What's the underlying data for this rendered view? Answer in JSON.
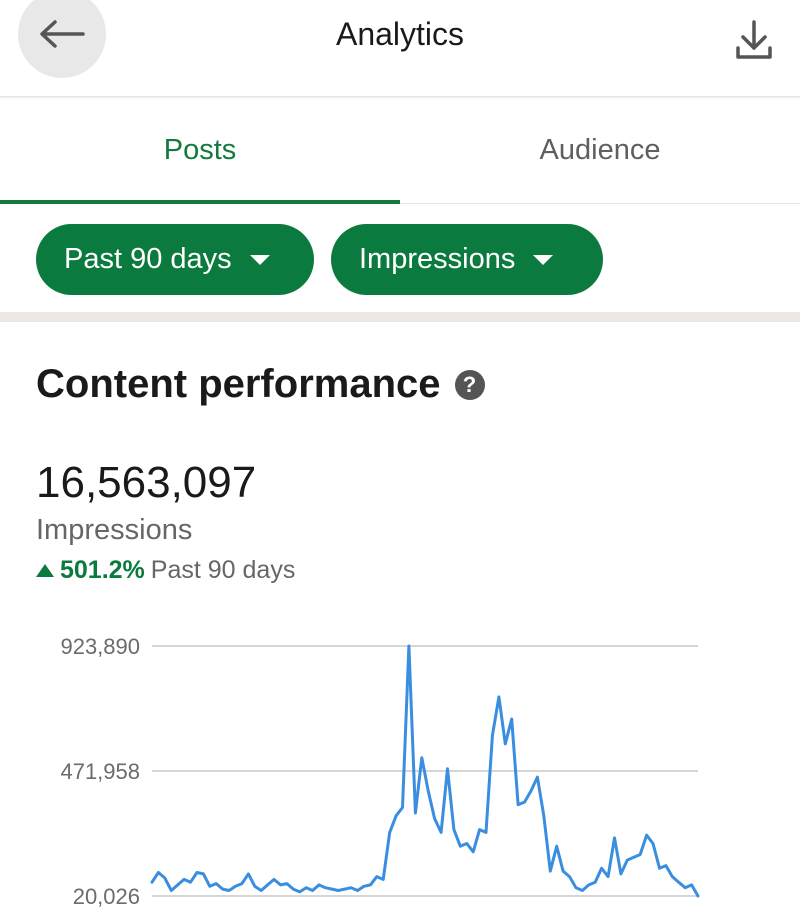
{
  "header": {
    "title": "Analytics",
    "back_icon": "arrow-left-icon",
    "download_icon": "download-icon"
  },
  "tabs": [
    {
      "label": "Posts",
      "active": true
    },
    {
      "label": "Audience",
      "active": false
    }
  ],
  "filters": {
    "date_range": "Past 90 days",
    "metric": "Impressions"
  },
  "section": {
    "title": "Content performance",
    "help_icon": "question-circle-icon",
    "help_glyph": "?"
  },
  "summary": {
    "total": "16,563,097",
    "label": "Impressions",
    "change": "501.2%",
    "change_period": "Past 90 days"
  },
  "colors": {
    "accent": "#0b7a3f",
    "line": "#3a8ee0"
  },
  "chart_data": {
    "type": "line",
    "yticks": [
      "923,890",
      "471,958",
      "20,026"
    ],
    "ylim": [
      20026,
      923890
    ],
    "grid": true,
    "series": [
      {
        "values": [
          70000,
          105000,
          85000,
          40000,
          60000,
          80000,
          70000,
          105000,
          100000,
          55000,
          65000,
          45000,
          40000,
          55000,
          65000,
          100000,
          55000,
          40000,
          60000,
          80000,
          60000,
          65000,
          45000,
          35000,
          50000,
          40000,
          60000,
          50000,
          45000,
          40000,
          45000,
          50000,
          40000,
          55000,
          60000,
          90000,
          80000,
          250000,
          310000,
          340000,
          923890,
          320000,
          520000,
          400000,
          300000,
          250000,
          480000,
          260000,
          200000,
          210000,
          180000,
          260000,
          250000,
          600000,
          740000,
          570000,
          660000,
          350000,
          360000,
          400000,
          450000,
          310000,
          110000,
          200000,
          110000,
          90000,
          50000,
          40000,
          60000,
          70000,
          120000,
          90000,
          230000,
          100000,
          150000,
          160000,
          170000,
          240000,
          210000,
          120000,
          130000,
          90000,
          70000,
          50000,
          60000,
          20026
        ]
      }
    ]
  }
}
